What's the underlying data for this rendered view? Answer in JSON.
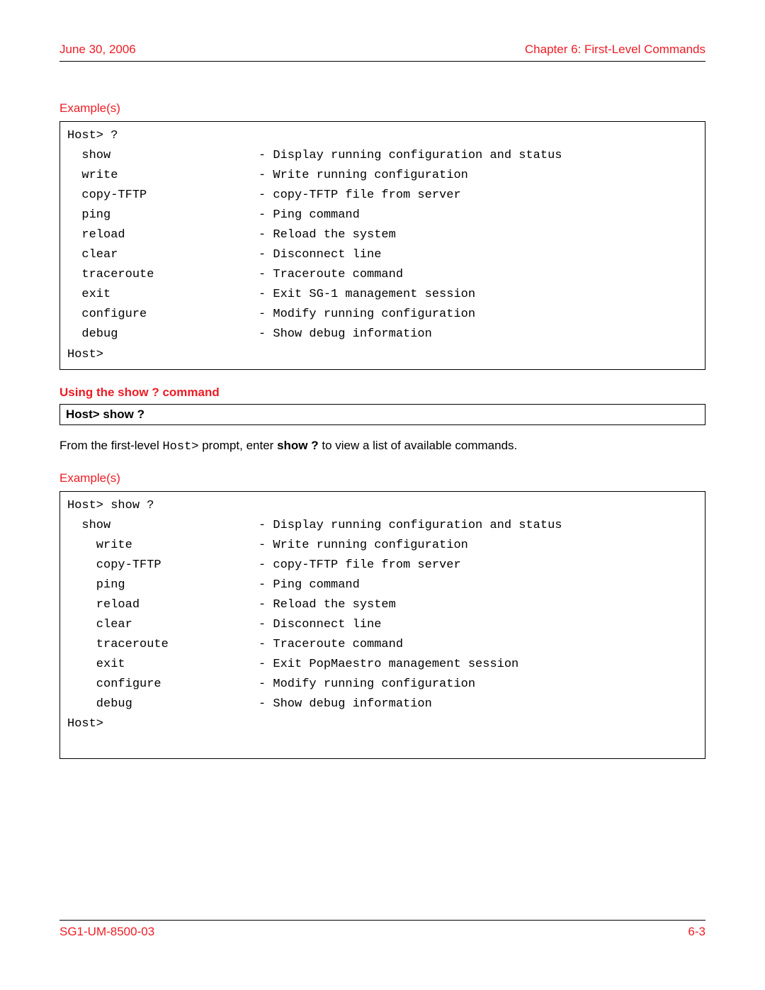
{
  "colors": {
    "accent": "#ed1c24",
    "text": "#000000",
    "border": "#000000",
    "background": "#ffffff"
  },
  "typography": {
    "body_family": "Arial, Helvetica, sans-serif",
    "mono_family": "Courier New, Courier, monospace",
    "body_size_pt": 12,
    "code_size_pt": 12
  },
  "header": {
    "left": "June 30, 2006",
    "right": "Chapter 6: First-Level Commands"
  },
  "example1": {
    "label": "Example(s)",
    "prompt_top": "Host> ?",
    "indent": "  ",
    "rows": [
      {
        "cmd": "show",
        "desc": "- Display running configuration and status"
      },
      {
        "cmd": "write",
        "desc": "- Write running configuration"
      },
      {
        "cmd": "copy-TFTP",
        "desc": "- copy-TFTP file from server"
      },
      {
        "cmd": "ping",
        "desc": "- Ping command"
      },
      {
        "cmd": "reload",
        "desc": "- Reload the system"
      },
      {
        "cmd": "clear",
        "desc": "- Disconnect line"
      },
      {
        "cmd": "traceroute",
        "desc": "- Traceroute command"
      },
      {
        "cmd": "exit",
        "desc": "- Exit SG-1 management session"
      },
      {
        "cmd": "configure",
        "desc": "- Modify running configuration"
      },
      {
        "cmd": "debug",
        "desc": "- Show debug information"
      }
    ],
    "prompt_bottom": "Host>"
  },
  "subhead": "Using the show ? command",
  "prompt_box": "Host> show ?",
  "body_text": {
    "pre": "From the first-level ",
    "mono": "Host>",
    "mid": " prompt, enter ",
    "bold": "show ?",
    "post": " to view a list of available commands."
  },
  "example2": {
    "label": "Example(s)",
    "prompt_top": "Host> show ?",
    "indent1": "  ",
    "indent2": "    ",
    "first_row": {
      "cmd": "show",
      "desc": "- Display running configuration and status"
    },
    "rows": [
      {
        "cmd": "write",
        "desc": "- Write running configuration"
      },
      {
        "cmd": "copy-TFTP",
        "desc": "- copy-TFTP file from server"
      },
      {
        "cmd": "ping",
        "desc": "- Ping command"
      },
      {
        "cmd": "reload",
        "desc": "- Reload the system"
      },
      {
        "cmd": "clear",
        "desc": "- Disconnect line"
      },
      {
        "cmd": "traceroute",
        "desc": "- Traceroute command"
      },
      {
        "cmd": "exit",
        "desc": "- Exit PopMaestro management session"
      },
      {
        "cmd": "configure",
        "desc": "- Modify running configuration"
      },
      {
        "cmd": "debug",
        "desc": "- Show debug information"
      }
    ],
    "prompt_bottom": "Host>"
  },
  "footer": {
    "left": "SG1-UM-8500-03",
    "right": "6-3"
  }
}
